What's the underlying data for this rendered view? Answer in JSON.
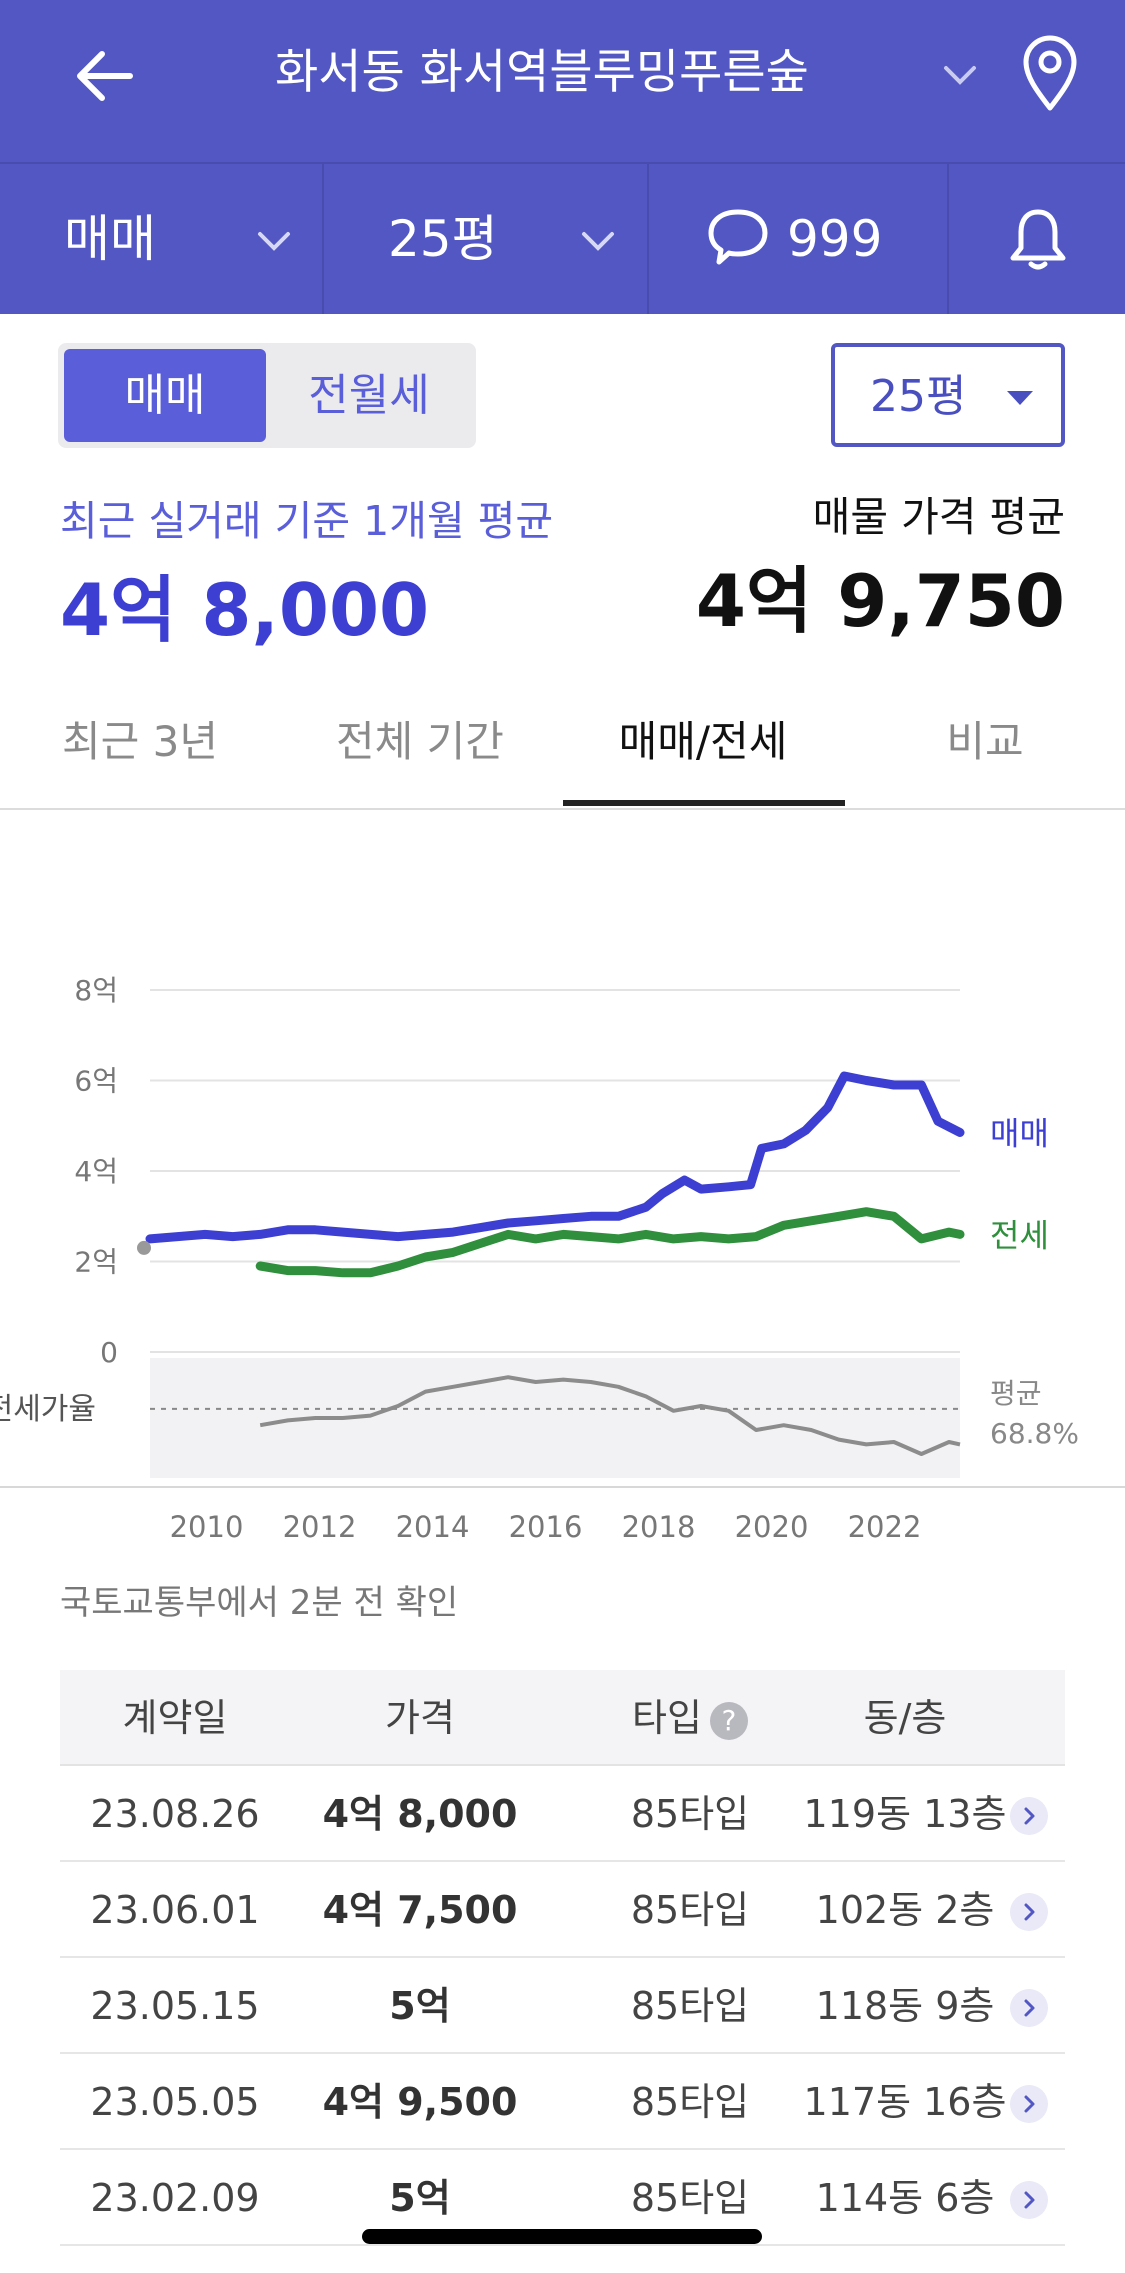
{
  "header": {
    "title": "화서동 화서역블루밍푸른숲",
    "subbar": {
      "deal_type": "매매",
      "area": "25평",
      "comment_count": "999"
    }
  },
  "filters": {
    "segment": {
      "active": "매매",
      "inactive": "전월세"
    },
    "area_select": "25평"
  },
  "summary": {
    "recent_label": "최근 실거래 기준 1개월 평균",
    "recent_value": "4억 8,000",
    "listing_label": "매물 가격 평균",
    "listing_value": "4억 9,750"
  },
  "tabs": [
    "최근 3년",
    "전체 기간",
    "매매/전세",
    "비교"
  ],
  "chart_data": {
    "type": "line",
    "y_ticks": [
      "8억",
      "6억",
      "4억",
      "2억",
      "0"
    ],
    "ylim": [
      0,
      8
    ],
    "x_ticks": [
      "2010",
      "2012",
      "2014",
      "2016",
      "2018",
      "2020",
      "2022"
    ],
    "series": [
      {
        "name": "매매",
        "color": "#3c3fd1",
        "points": [
          [
            2009.0,
            2.5
          ],
          [
            2009.5,
            2.55
          ],
          [
            2010.0,
            2.6
          ],
          [
            2010.5,
            2.55
          ],
          [
            2011.0,
            2.6
          ],
          [
            2011.5,
            2.7
          ],
          [
            2012.0,
            2.7
          ],
          [
            2012.5,
            2.65
          ],
          [
            2013.0,
            2.6
          ],
          [
            2013.5,
            2.55
          ],
          [
            2014.0,
            2.6
          ],
          [
            2014.5,
            2.65
          ],
          [
            2015.0,
            2.75
          ],
          [
            2015.5,
            2.85
          ],
          [
            2016.0,
            2.9
          ],
          [
            2016.5,
            2.95
          ],
          [
            2017.0,
            3.0
          ],
          [
            2017.5,
            3.0
          ],
          [
            2018.0,
            3.2
          ],
          [
            2018.3,
            3.5
          ],
          [
            2018.7,
            3.8
          ],
          [
            2019.0,
            3.6
          ],
          [
            2019.5,
            3.65
          ],
          [
            2019.9,
            3.7
          ],
          [
            2020.1,
            4.5
          ],
          [
            2020.5,
            4.6
          ],
          [
            2020.9,
            4.9
          ],
          [
            2021.3,
            5.4
          ],
          [
            2021.6,
            6.1
          ],
          [
            2022.0,
            6.0
          ],
          [
            2022.5,
            5.9
          ],
          [
            2023.0,
            5.9
          ],
          [
            2023.3,
            5.1
          ],
          [
            2023.7,
            4.85
          ]
        ]
      },
      {
        "name": "전세",
        "color": "#2f8f3c",
        "points": [
          [
            2011.0,
            1.9
          ],
          [
            2011.5,
            1.8
          ],
          [
            2012.0,
            1.8
          ],
          [
            2012.5,
            1.75
          ],
          [
            2013.0,
            1.75
          ],
          [
            2013.5,
            1.9
          ],
          [
            2014.0,
            2.1
          ],
          [
            2014.5,
            2.2
          ],
          [
            2015.0,
            2.4
          ],
          [
            2015.5,
            2.6
          ],
          [
            2016.0,
            2.5
          ],
          [
            2016.5,
            2.6
          ],
          [
            2017.0,
            2.55
          ],
          [
            2017.5,
            2.5
          ],
          [
            2018.0,
            2.6
          ],
          [
            2018.5,
            2.5
          ],
          [
            2019.0,
            2.55
          ],
          [
            2019.5,
            2.5
          ],
          [
            2020.0,
            2.55
          ],
          [
            2020.5,
            2.8
          ],
          [
            2021.0,
            2.9
          ],
          [
            2021.5,
            3.0
          ],
          [
            2022.0,
            3.1
          ],
          [
            2022.5,
            3.0
          ],
          [
            2023.0,
            2.5
          ],
          [
            2023.5,
            2.65
          ],
          [
            2023.7,
            2.6
          ]
        ]
      }
    ],
    "ratio_panel": {
      "label": "전세가율",
      "avg_label": "평균",
      "avg_value": "68.8%",
      "avg": 68.8,
      "points": [
        [
          2011.0,
          62
        ],
        [
          2011.5,
          64
        ],
        [
          2012.0,
          65
        ],
        [
          2012.5,
          65
        ],
        [
          2013.0,
          66
        ],
        [
          2013.5,
          70
        ],
        [
          2014.0,
          76
        ],
        [
          2014.5,
          78
        ],
        [
          2015.0,
          80
        ],
        [
          2015.5,
          82
        ],
        [
          2016.0,
          80
        ],
        [
          2016.5,
          81
        ],
        [
          2017.0,
          80
        ],
        [
          2017.5,
          78
        ],
        [
          2018.0,
          74
        ],
        [
          2018.5,
          68
        ],
        [
          2019.0,
          70
        ],
        [
          2019.5,
          68
        ],
        [
          2020.0,
          60
        ],
        [
          2020.5,
          62
        ],
        [
          2021.0,
          60
        ],
        [
          2021.5,
          56
        ],
        [
          2022.0,
          54
        ],
        [
          2022.5,
          55
        ],
        [
          2023.0,
          50
        ],
        [
          2023.5,
          55
        ],
        [
          2023.7,
          54
        ]
      ]
    }
  },
  "source_note": "국토교통부에서 2분 전 확인",
  "table": {
    "headers": [
      "계약일",
      "가격",
      "타입",
      "동/층"
    ],
    "help_icon": "?",
    "rows": [
      [
        "23.08.26",
        "4억 8,000",
        "85타입",
        "119동 13층"
      ],
      [
        "23.06.01",
        "4억 7,500",
        "85타입",
        "102동 2층"
      ],
      [
        "23.05.15",
        "5억",
        "85타입",
        "118동 9층"
      ],
      [
        "23.05.05",
        "4억 9,500",
        "85타입",
        "117동 16층"
      ],
      [
        "23.02.09",
        "5억",
        "85타입",
        "114동 6층"
      ]
    ]
  },
  "colors": {
    "header_bg": "#5257c3",
    "accent": "#5a5ed8",
    "sale_line": "#3c3fd1",
    "jeonse_line": "#2f8f3c"
  }
}
